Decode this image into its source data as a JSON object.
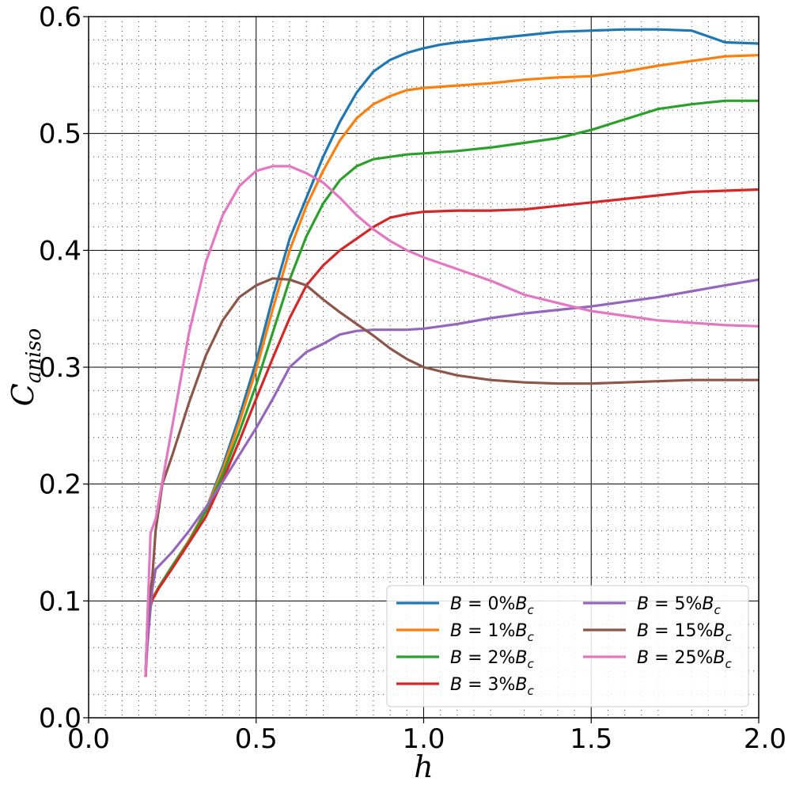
{
  "chart_data": {
    "type": "line",
    "xlabel": "h",
    "ylabel_main": "C",
    "ylabel_sub": "aniso",
    "xlim": [
      0.0,
      2.0
    ],
    "ylim": [
      0.0,
      0.6
    ],
    "xticks": [
      "0.0",
      "0.5",
      "1.0",
      "1.5",
      "2.0"
    ],
    "yticks": [
      "0.0",
      "0.1",
      "0.2",
      "0.3",
      "0.4",
      "0.5",
      "0.6"
    ],
    "grid": {
      "major": true,
      "minor": true,
      "minor_style": "dotted"
    },
    "legend_position": "lower-right",
    "legend_columns": 2,
    "series": [
      {
        "name": "B = 0%B_c",
        "label_main": "B = 0%",
        "label_sub": "c",
        "color": "#1f77b4",
        "points": [
          [
            0.17,
            0.035
          ],
          [
            0.175,
            0.075
          ],
          [
            0.18,
            0.09
          ],
          [
            0.19,
            0.102
          ],
          [
            0.21,
            0.112
          ],
          [
            0.25,
            0.13
          ],
          [
            0.3,
            0.152
          ],
          [
            0.35,
            0.178
          ],
          [
            0.4,
            0.215
          ],
          [
            0.45,
            0.258
          ],
          [
            0.5,
            0.305
          ],
          [
            0.55,
            0.36
          ],
          [
            0.6,
            0.41
          ],
          [
            0.65,
            0.445
          ],
          [
            0.7,
            0.48
          ],
          [
            0.75,
            0.51
          ],
          [
            0.8,
            0.535
          ],
          [
            0.85,
            0.553
          ],
          [
            0.9,
            0.563
          ],
          [
            0.95,
            0.569
          ],
          [
            1.0,
            0.573
          ],
          [
            1.05,
            0.576
          ],
          [
            1.1,
            0.578
          ],
          [
            1.2,
            0.581
          ],
          [
            1.3,
            0.584
          ],
          [
            1.4,
            0.587
          ],
          [
            1.5,
            0.588
          ],
          [
            1.6,
            0.589
          ],
          [
            1.7,
            0.589
          ],
          [
            1.8,
            0.588
          ],
          [
            1.9,
            0.578
          ],
          [
            2.0,
            0.577
          ]
        ]
      },
      {
        "name": "B = 1%B_c",
        "label_main": "B = 1%",
        "label_sub": "c",
        "color": "#ff7f0e",
        "points": [
          [
            0.17,
            0.035
          ],
          [
            0.175,
            0.075
          ],
          [
            0.18,
            0.09
          ],
          [
            0.19,
            0.102
          ],
          [
            0.21,
            0.112
          ],
          [
            0.25,
            0.13
          ],
          [
            0.3,
            0.152
          ],
          [
            0.35,
            0.178
          ],
          [
            0.4,
            0.212
          ],
          [
            0.45,
            0.253
          ],
          [
            0.5,
            0.298
          ],
          [
            0.55,
            0.35
          ],
          [
            0.6,
            0.4
          ],
          [
            0.65,
            0.438
          ],
          [
            0.7,
            0.468
          ],
          [
            0.75,
            0.494
          ],
          [
            0.8,
            0.513
          ],
          [
            0.85,
            0.525
          ],
          [
            0.9,
            0.532
          ],
          [
            0.95,
            0.537
          ],
          [
            1.0,
            0.539
          ],
          [
            1.1,
            0.541
          ],
          [
            1.2,
            0.543
          ],
          [
            1.3,
            0.546
          ],
          [
            1.4,
            0.548
          ],
          [
            1.5,
            0.549
          ],
          [
            1.6,
            0.553
          ],
          [
            1.7,
            0.558
          ],
          [
            1.8,
            0.562
          ],
          [
            1.9,
            0.566
          ],
          [
            2.0,
            0.567
          ]
        ]
      },
      {
        "name": "B = 2%B_c",
        "label_main": "B = 2%",
        "label_sub": "c",
        "color": "#2ca02c",
        "points": [
          [
            0.17,
            0.035
          ],
          [
            0.175,
            0.075
          ],
          [
            0.18,
            0.09
          ],
          [
            0.19,
            0.101
          ],
          [
            0.21,
            0.112
          ],
          [
            0.25,
            0.13
          ],
          [
            0.3,
            0.151
          ],
          [
            0.35,
            0.177
          ],
          [
            0.4,
            0.208
          ],
          [
            0.45,
            0.245
          ],
          [
            0.5,
            0.285
          ],
          [
            0.55,
            0.33
          ],
          [
            0.6,
            0.375
          ],
          [
            0.65,
            0.412
          ],
          [
            0.7,
            0.44
          ],
          [
            0.75,
            0.46
          ],
          [
            0.8,
            0.472
          ],
          [
            0.85,
            0.478
          ],
          [
            0.9,
            0.48
          ],
          [
            0.95,
            0.482
          ],
          [
            1.0,
            0.483
          ],
          [
            1.1,
            0.485
          ],
          [
            1.2,
            0.488
          ],
          [
            1.3,
            0.492
          ],
          [
            1.4,
            0.496
          ],
          [
            1.5,
            0.503
          ],
          [
            1.6,
            0.512
          ],
          [
            1.7,
            0.521
          ],
          [
            1.8,
            0.525
          ],
          [
            1.9,
            0.528
          ],
          [
            2.0,
            0.528
          ]
        ]
      },
      {
        "name": "B = 3%B_c",
        "label_main": "B = 3%",
        "label_sub": "c",
        "color": "#d62728",
        "points": [
          [
            0.17,
            0.035
          ],
          [
            0.175,
            0.075
          ],
          [
            0.18,
            0.09
          ],
          [
            0.19,
            0.101
          ],
          [
            0.21,
            0.111
          ],
          [
            0.25,
            0.128
          ],
          [
            0.3,
            0.15
          ],
          [
            0.35,
            0.172
          ],
          [
            0.4,
            0.203
          ],
          [
            0.45,
            0.237
          ],
          [
            0.5,
            0.273
          ],
          [
            0.55,
            0.308
          ],
          [
            0.6,
            0.342
          ],
          [
            0.65,
            0.37
          ],
          [
            0.7,
            0.387
          ],
          [
            0.75,
            0.4
          ],
          [
            0.8,
            0.41
          ],
          [
            0.85,
            0.42
          ],
          [
            0.9,
            0.428
          ],
          [
            0.95,
            0.431
          ],
          [
            1.0,
            0.433
          ],
          [
            1.1,
            0.434
          ],
          [
            1.2,
            0.434
          ],
          [
            1.3,
            0.435
          ],
          [
            1.4,
            0.438
          ],
          [
            1.5,
            0.441
          ],
          [
            1.6,
            0.444
          ],
          [
            1.7,
            0.447
          ],
          [
            1.8,
            0.45
          ],
          [
            1.9,
            0.451
          ],
          [
            2.0,
            0.452
          ]
        ]
      },
      {
        "name": "B = 5%B_c",
        "label_main": "B = 5%",
        "label_sub": "c",
        "color": "#9467bd",
        "points": [
          [
            0.17,
            0.035
          ],
          [
            0.175,
            0.06
          ],
          [
            0.18,
            0.078
          ],
          [
            0.19,
            0.11
          ],
          [
            0.2,
            0.127
          ],
          [
            0.25,
            0.142
          ],
          [
            0.3,
            0.16
          ],
          [
            0.35,
            0.18
          ],
          [
            0.4,
            0.202
          ],
          [
            0.45,
            0.225
          ],
          [
            0.5,
            0.248
          ],
          [
            0.55,
            0.273
          ],
          [
            0.6,
            0.3
          ],
          [
            0.65,
            0.313
          ],
          [
            0.7,
            0.32
          ],
          [
            0.75,
            0.328
          ],
          [
            0.8,
            0.331
          ],
          [
            0.85,
            0.332
          ],
          [
            0.9,
            0.332
          ],
          [
            0.95,
            0.332
          ],
          [
            1.0,
            0.333
          ],
          [
            1.1,
            0.337
          ],
          [
            1.2,
            0.342
          ],
          [
            1.3,
            0.346
          ],
          [
            1.4,
            0.349
          ],
          [
            1.5,
            0.352
          ],
          [
            1.6,
            0.356
          ],
          [
            1.7,
            0.36
          ],
          [
            1.8,
            0.365
          ],
          [
            1.9,
            0.37
          ],
          [
            2.0,
            0.375
          ]
        ]
      },
      {
        "name": "B = 15%B_c",
        "label_main": "B = 15%",
        "label_sub": "c",
        "color": "#8c564b",
        "points": [
          [
            0.17,
            0.035
          ],
          [
            0.175,
            0.075
          ],
          [
            0.18,
            0.1
          ],
          [
            0.19,
            0.12
          ],
          [
            0.2,
            0.16
          ],
          [
            0.22,
            0.2
          ],
          [
            0.25,
            0.225
          ],
          [
            0.3,
            0.27
          ],
          [
            0.35,
            0.31
          ],
          [
            0.4,
            0.34
          ],
          [
            0.45,
            0.36
          ],
          [
            0.5,
            0.37
          ],
          [
            0.55,
            0.376
          ],
          [
            0.6,
            0.375
          ],
          [
            0.65,
            0.37
          ],
          [
            0.7,
            0.358
          ],
          [
            0.75,
            0.347
          ],
          [
            0.8,
            0.337
          ],
          [
            0.85,
            0.327
          ],
          [
            0.9,
            0.316
          ],
          [
            0.95,
            0.307
          ],
          [
            1.0,
            0.3
          ],
          [
            1.1,
            0.293
          ],
          [
            1.2,
            0.289
          ],
          [
            1.3,
            0.287
          ],
          [
            1.4,
            0.286
          ],
          [
            1.5,
            0.286
          ],
          [
            1.6,
            0.287
          ],
          [
            1.7,
            0.288
          ],
          [
            1.8,
            0.289
          ],
          [
            1.9,
            0.289
          ],
          [
            2.0,
            0.289
          ]
        ]
      },
      {
        "name": "B = 25%B_c",
        "label_main": "B = 25%",
        "label_sub": "c",
        "color": "#e377c2",
        "points": [
          [
            0.17,
            0.035
          ],
          [
            0.175,
            0.08
          ],
          [
            0.18,
            0.12
          ],
          [
            0.185,
            0.158
          ],
          [
            0.2,
            0.17
          ],
          [
            0.25,
            0.25
          ],
          [
            0.3,
            0.33
          ],
          [
            0.35,
            0.39
          ],
          [
            0.4,
            0.43
          ],
          [
            0.45,
            0.455
          ],
          [
            0.5,
            0.468
          ],
          [
            0.55,
            0.472
          ],
          [
            0.6,
            0.472
          ],
          [
            0.65,
            0.466
          ],
          [
            0.7,
            0.458
          ],
          [
            0.75,
            0.445
          ],
          [
            0.8,
            0.43
          ],
          [
            0.85,
            0.418
          ],
          [
            0.9,
            0.408
          ],
          [
            0.95,
            0.4
          ],
          [
            1.0,
            0.394
          ],
          [
            1.1,
            0.384
          ],
          [
            1.2,
            0.374
          ],
          [
            1.3,
            0.362
          ],
          [
            1.4,
            0.355
          ],
          [
            1.5,
            0.348
          ],
          [
            1.6,
            0.344
          ],
          [
            1.7,
            0.34
          ],
          [
            1.8,
            0.338
          ],
          [
            1.9,
            0.336
          ],
          [
            2.0,
            0.335
          ]
        ]
      }
    ]
  }
}
